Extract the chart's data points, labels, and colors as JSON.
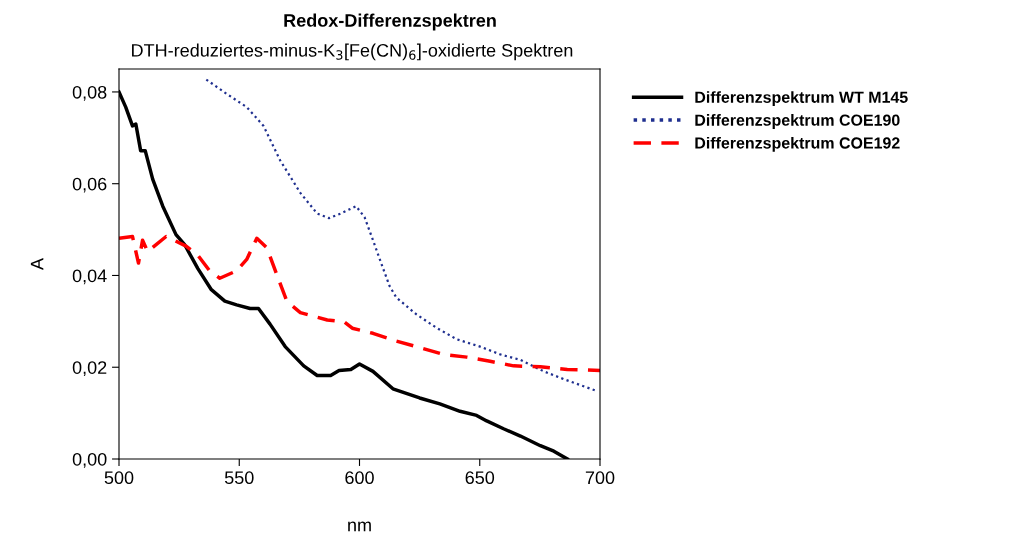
{
  "chart_data": {
    "type": "line",
    "title": "Redox-Differenzspektren",
    "subtitle": "DTH-reduziertes-minus-K$_{3}$[Fe(CN)$_{6}$]-oxidierte Spektren",
    "xlabel": "nm",
    "ylabel": "A",
    "xlim": [
      500,
      700
    ],
    "xticks": [
      500,
      550,
      600,
      650,
      700
    ],
    "ylim": [
      0,
      0.085
    ],
    "yticks": [
      {
        "value": 0,
        "label": "0,00"
      },
      {
        "value": 0.02,
        "label": "0,02"
      },
      {
        "value": 0.04,
        "label": "0,04"
      },
      {
        "value": 0.06,
        "label": "0,06"
      },
      {
        "value": 0.08,
        "label": "0,08"
      }
    ],
    "grid": false,
    "legend": "right",
    "marker": "none",
    "series": [
      {
        "name": "Differenzspektrum WT M145",
        "color": "#000000",
        "line_style": "solid",
        "x": [
          500,
          502.8,
          505.6,
          507,
          509,
          510.9,
          514,
          518.2,
          523.7,
          527.2,
          532.8,
          538.4,
          544,
          548.9,
          554.5,
          558,
          562.8,
          569.1,
          576.8,
          582.4,
          588,
          591.5,
          596.4,
          600,
          605.6,
          613.9,
          625,
          633.4,
          641.8,
          648.7,
          652.9,
          659.9,
          666.9,
          675.2,
          680.8,
          686.4
        ],
        "values": [
          0.08,
          0.0767,
          0.0726,
          0.073,
          0.0672,
          0.0672,
          0.061,
          0.0551,
          0.0489,
          0.0468,
          0.0415,
          0.0369,
          0.0344,
          0.0336,
          0.0328,
          0.0328,
          0.0294,
          0.0245,
          0.0203,
          0.0182,
          0.0182,
          0.0193,
          0.0195,
          0.0207,
          0.0191,
          0.0153,
          0.0133,
          0.012,
          0.0104,
          0.0095,
          0.0083,
          0.0066,
          0.005,
          0.0029,
          0.0017,
          0.0
        ]
      },
      {
        "name": "Differenzspektrum COE190",
        "color": "#1f2f8f",
        "line_style": "dotted",
        "x": [
          536.3,
          544.7,
          553.1,
          560.1,
          567,
          575.4,
          582.4,
          587.3,
          592.2,
          598.6,
          602.1,
          605.6,
          609,
          612.5,
          615.3,
          623.7,
          632,
          640.4,
          650.1,
          658.5,
          666.9,
          676.6,
          685,
          698.2
        ],
        "values": [
          0.0827,
          0.0796,
          0.0767,
          0.0726,
          0.0651,
          0.058,
          0.0535,
          0.0525,
          0.0535,
          0.0551,
          0.0527,
          0.0477,
          0.0427,
          0.0377,
          0.0352,
          0.0315,
          0.0286,
          0.0261,
          0.0245,
          0.0228,
          0.0216,
          0.0191,
          0.0174,
          0.0149
        ]
      },
      {
        "name": "Differenzspektrum COE192",
        "color": "#ff0000",
        "line_style": "dashed",
        "x": [
          500,
          505.6,
          508.1,
          509.8,
          511.9,
          519.6,
          527.9,
          532.8,
          537.7,
          541.9,
          548.9,
          553.1,
          557.3,
          561.5,
          565.6,
          569.8,
          575.4,
          586.6,
          593.6,
          597,
          605.6,
          615.3,
          625,
          634.8,
          644.6,
          654.3,
          664.1,
          675.2,
          686.4,
          700
        ],
        "values": [
          0.0481,
          0.0485,
          0.0427,
          0.0477,
          0.0452,
          0.0485,
          0.0464,
          0.0444,
          0.041,
          0.0394,
          0.041,
          0.0435,
          0.0481,
          0.046,
          0.0402,
          0.0344,
          0.0319,
          0.0303,
          0.0299,
          0.0285,
          0.0274,
          0.0257,
          0.0243,
          0.0228,
          0.0222,
          0.0213,
          0.0203,
          0.0201,
          0.0195,
          0.0193
        ]
      }
    ]
  }
}
